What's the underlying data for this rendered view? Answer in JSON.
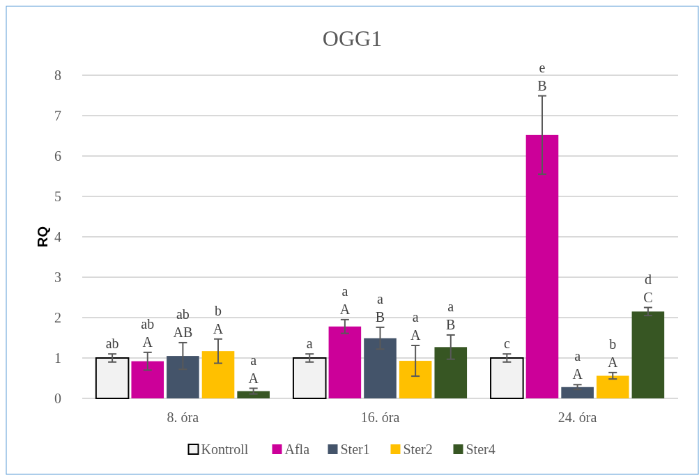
{
  "chart_data": {
    "type": "bar",
    "title": "OGG1",
    "ylabel": "RQ",
    "categories": [
      "8. óra",
      "16. óra",
      "24. óra"
    ],
    "ylim": [
      0,
      8
    ],
    "yticks": [
      0,
      1,
      2,
      3,
      4,
      5,
      6,
      7,
      8
    ],
    "grid": "y",
    "legend": "bottom",
    "series": [
      {
        "name": "Kontroll",
        "color": "#f2f2f2",
        "values": [
          1.0,
          1.0,
          1.0
        ],
        "errors": [
          0.1,
          0.1,
          0.1
        ],
        "value_labels": [
          "ab",
          "a",
          "c"
        ]
      },
      {
        "name": "Afla",
        "color": "#cc0099",
        "values": [
          0.92,
          1.78,
          6.52
        ],
        "errors": [
          0.22,
          0.17,
          0.97
        ],
        "value_labels": [
          "ab\nA",
          "a\nA",
          "e\nB"
        ]
      },
      {
        "name": "Ster1",
        "color": "#44546a",
        "values": [
          1.05,
          1.49,
          0.28
        ],
        "errors": [
          0.33,
          0.27,
          0.06
        ],
        "value_labels": [
          "ab\nAB",
          "a\nB",
          "a\nA"
        ]
      },
      {
        "name": "Ster2",
        "color": "#ffc000",
        "values": [
          1.17,
          0.93,
          0.56
        ],
        "errors": [
          0.3,
          0.38,
          0.08
        ],
        "value_labels": [
          "b\nA",
          "a\nA",
          "b\nA"
        ]
      },
      {
        "name": "Ster4",
        "color": "#375623",
        "values": [
          0.18,
          1.27,
          2.15
        ],
        "errors": [
          0.07,
          0.3,
          0.1
        ],
        "value_labels": [
          "a\nA",
          "a\nB",
          "d\nC"
        ]
      }
    ]
  }
}
